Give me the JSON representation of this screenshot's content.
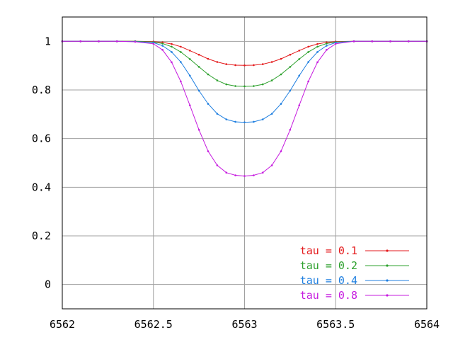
{
  "chart_data": {
    "type": "line",
    "title": "",
    "xlabel": "",
    "ylabel": "",
    "xlim": [
      6562,
      6564
    ],
    "ylim": [
      -0.1,
      1.1
    ],
    "grid": true,
    "legend_position": "bottom-right",
    "x_ticks": [
      "6562",
      "6562.5",
      "6563",
      "6563.5",
      "6564"
    ],
    "y_ticks": [
      "0",
      "0.2",
      "0.4",
      "0.6",
      "0.8",
      "1"
    ],
    "x_tick_values": [
      6562,
      6562.5,
      6563,
      6563.5,
      6564
    ],
    "y_tick_values": [
      0,
      0.2,
      0.4,
      0.6,
      0.8,
      1
    ],
    "x": [
      6562.0,
      6562.1,
      6562.2,
      6562.3,
      6562.4,
      6562.5,
      6562.55,
      6562.6,
      6562.65,
      6562.7,
      6562.75,
      6562.8,
      6562.85,
      6562.9,
      6562.95,
      6563.0,
      6563.05,
      6563.1,
      6563.15,
      6563.2,
      6563.25,
      6563.3,
      6563.35,
      6563.4,
      6563.45,
      6563.5,
      6563.6,
      6563.7,
      6563.8,
      6563.9,
      6564.0
    ],
    "series": [
      {
        "name": "tau = 0.1",
        "color": "#e41a1c",
        "values": [
          1.0,
          1.0,
          1.0,
          1.0,
          1.0,
          0.999,
          0.996,
          0.989,
          0.978,
          0.962,
          0.945,
          0.928,
          0.915,
          0.906,
          0.902,
          0.901,
          0.902,
          0.906,
          0.915,
          0.928,
          0.945,
          0.962,
          0.978,
          0.989,
          0.996,
          0.999,
          1.0,
          1.0,
          1.0,
          1.0,
          1.0
        ]
      },
      {
        "name": "tau = 0.2",
        "color": "#2ca02c",
        "values": [
          1.0,
          1.0,
          1.0,
          1.0,
          1.0,
          0.997,
          0.991,
          0.978,
          0.956,
          0.927,
          0.895,
          0.864,
          0.839,
          0.823,
          0.816,
          0.815,
          0.816,
          0.823,
          0.839,
          0.864,
          0.895,
          0.927,
          0.956,
          0.978,
          0.991,
          0.997,
          1.0,
          1.0,
          1.0,
          1.0,
          1.0
        ]
      },
      {
        "name": "tau = 0.4",
        "color": "#1f7fe0",
        "values": [
          1.0,
          1.0,
          1.0,
          1.0,
          0.999,
          0.995,
          0.982,
          0.956,
          0.915,
          0.859,
          0.797,
          0.743,
          0.702,
          0.679,
          0.669,
          0.667,
          0.669,
          0.679,
          0.702,
          0.743,
          0.797,
          0.859,
          0.915,
          0.956,
          0.982,
          0.995,
          1.0,
          1.0,
          1.0,
          1.0,
          1.0
        ]
      },
      {
        "name": "tau = 0.8",
        "color": "#c61bdf",
        "values": [
          1.0,
          1.0,
          1.0,
          1.0,
          0.998,
          0.99,
          0.965,
          0.914,
          0.835,
          0.737,
          0.636,
          0.548,
          0.49,
          0.46,
          0.449,
          0.446,
          0.449,
          0.46,
          0.49,
          0.548,
          0.636,
          0.737,
          0.835,
          0.914,
          0.965,
          0.99,
          1.0,
          1.0,
          1.0,
          1.0,
          1.0
        ]
      }
    ]
  }
}
